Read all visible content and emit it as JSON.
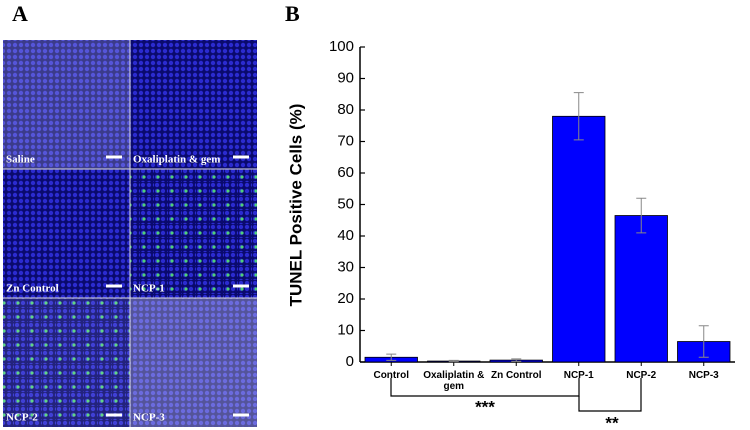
{
  "panel_a": {
    "label": "A",
    "images": [
      "Saline",
      "Oxaliplatin & gem",
      "Zn Control",
      "NCP-1",
      "NCP-2",
      "NCP-3"
    ]
  },
  "chart_data": {
    "type": "bar",
    "panel_label": "B",
    "y_label": "TUNEL Positive Cells (%)",
    "categories": [
      "Control",
      "Oxaliplatin & gem",
      "Zn Control",
      "NCP-1",
      "NCP-2",
      "NCP-3"
    ],
    "series": [
      {
        "color": "#0000ff",
        "values": [
          1.5,
          0.3,
          0.6,
          78,
          46.5,
          6.5
        ],
        "errors": [
          1,
          0.2,
          0.4,
          7.5,
          5.5,
          5
        ]
      }
    ],
    "ylim": [
      0,
      100
    ],
    "yticks": [
      0,
      10,
      20,
      30,
      40,
      50,
      60,
      70,
      80,
      90,
      100
    ],
    "annotations": [
      "***",
      "**"
    ]
  }
}
